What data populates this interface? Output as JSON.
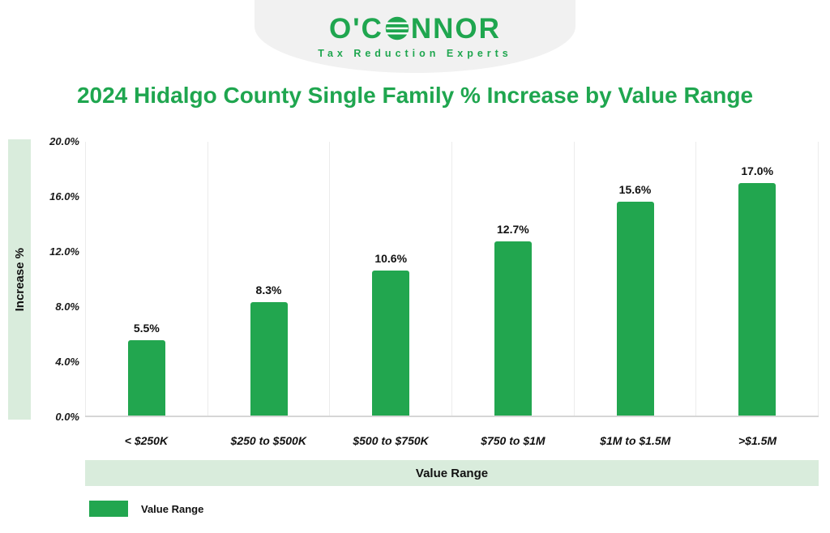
{
  "logo": {
    "brand_prefix": "O'C",
    "brand_suffix": "NNOR",
    "tagline": "Tax Reduction Experts"
  },
  "title": "2024 Hidalgo County Single Family % Increase by Value Range",
  "chart_data": {
    "type": "bar",
    "title": "2024 Hidalgo County Single Family % Increase by Value Range",
    "categories": [
      "< $250K",
      "$250 to $500K",
      "$500 to $750K",
      "$750 to $1M",
      "$1M to $1.5M",
      ">$1.5M"
    ],
    "values": [
      5.5,
      8.3,
      10.6,
      12.7,
      15.6,
      17.0
    ],
    "value_labels": [
      "5.5%",
      "8.3%",
      "10.6%",
      "12.7%",
      "15.6%",
      "17.0%"
    ],
    "xlabel": "Value Range",
    "ylabel": "Increase %",
    "ylim": [
      0,
      20
    ],
    "yticks": [
      "20.0%",
      "16.0%",
      "12.0%",
      "8.0%",
      "4.0%",
      "0.0%"
    ],
    "grid": "vertical-light",
    "legend": [
      {
        "label": "Value Range",
        "color": "#22A64F"
      }
    ],
    "bar_color": "#22A64F"
  },
  "colors": {
    "brand_green": "#1FA64F",
    "bar_green": "#22A64F",
    "band_green": "#d9ecdc",
    "banner_gray": "#f1f1f1",
    "gridline": "#ececec",
    "axis_line": "#d6d6d6",
    "text_dark": "#111111"
  }
}
